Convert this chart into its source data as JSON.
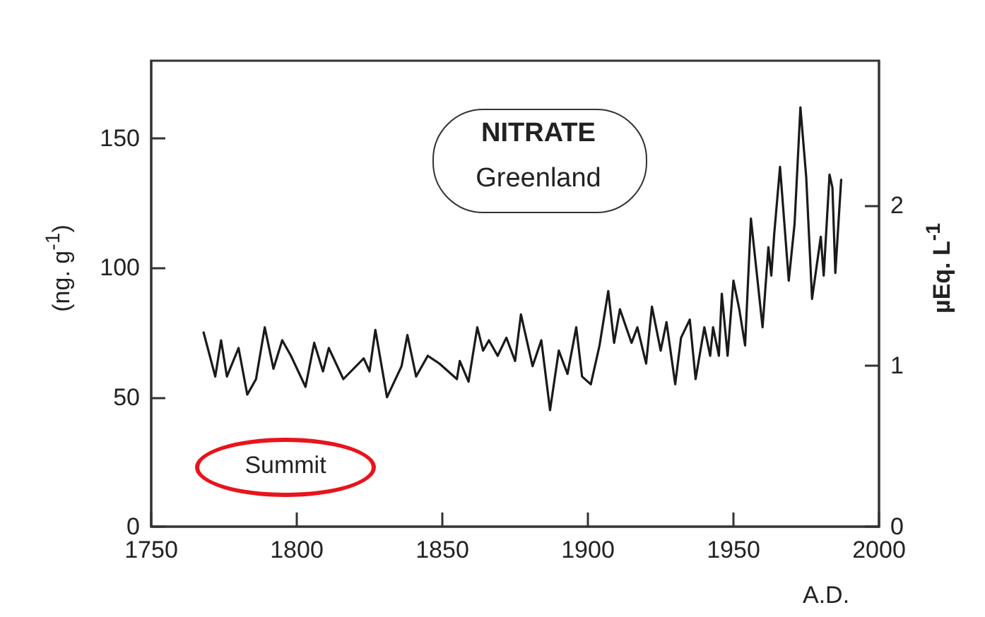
{
  "chart_data": {
    "type": "line",
    "xlabel": "A.D.",
    "ylabel": "(ng. g$^{-1}$)",
    "y2label": "µEq. L$^{-1}$",
    "annotations": [
      "NITRATE",
      "Greenland",
      "Summit"
    ],
    "x": [
      1768,
      1772,
      1774,
      1776,
      1780,
      1783,
      1786,
      1789,
      1792,
      1795,
      1798,
      1803,
      1806,
      1809,
      1811,
      1816,
      1823,
      1825,
      1827,
      1831,
      1836,
      1838,
      1841,
      1845,
      1849,
      1855,
      1856,
      1859,
      1862,
      1864,
      1866,
      1869,
      1872,
      1875,
      1877,
      1881,
      1884,
      1887,
      1890,
      1893,
      1896,
      1898,
      1901,
      1904,
      1907,
      1909,
      1911,
      1915,
      1917,
      1920,
      1922,
      1925,
      1927,
      1930,
      1932,
      1935,
      1937,
      1940,
      1942,
      1943,
      1945,
      1946,
      1948,
      1950,
      1952,
      1954,
      1956,
      1960,
      1962,
      1963,
      1964,
      1966,
      1969,
      1971,
      1973,
      1975,
      1977,
      1980,
      1981,
      1983,
      1984,
      1985,
      1987
    ],
    "series": [
      {
        "color": "#1a1a1a",
        "values": [
          75,
          58,
          72,
          58,
          69,
          51,
          57,
          77,
          61,
          72,
          66,
          54,
          71,
          60,
          69,
          57,
          65,
          60,
          76,
          50,
          62,
          74,
          58,
          66,
          63,
          57,
          64,
          56,
          77,
          68,
          72,
          66,
          73,
          64,
          82,
          62,
          72,
          45,
          68,
          59,
          77,
          58,
          55,
          70,
          91,
          71,
          84,
          71,
          77,
          63,
          85,
          68,
          79,
          55,
          73,
          80,
          57,
          77,
          66,
          77,
          66,
          90,
          66,
          95,
          84,
          70,
          119,
          77,
          108,
          97,
          113,
          139,
          95,
          117,
          162,
          135,
          88,
          112,
          97,
          136,
          131,
          98,
          134
        ]
      }
    ],
    "xlim": [
      1750,
      2000
    ],
    "xticks": [
      1750,
      1800,
      1850,
      1900,
      1950,
      2000
    ],
    "ylim": [
      0,
      180
    ],
    "yticks": [
      0,
      50,
      100,
      150
    ],
    "y2lim": [
      0,
      2.9
    ],
    "y2ticks": [
      0,
      1,
      2
    ],
    "grid": false,
    "marker": "none",
    "line_style": "solid"
  }
}
